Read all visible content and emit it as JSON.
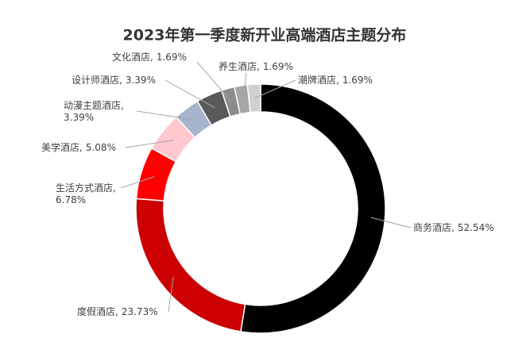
{
  "chart_data": {
    "type": "donut",
    "title": "2023年第一季度新开业高端酒店主题分布",
    "categories": [
      "商务酒店",
      "度假酒店",
      "生活方式酒店",
      "美学酒店",
      "动漫主题酒店",
      "设计师酒店",
      "文化酒店",
      "养生酒店",
      "潮牌酒店"
    ],
    "values": [
      52.54,
      23.73,
      6.78,
      5.08,
      3.39,
      3.39,
      1.69,
      1.69,
      1.69
    ],
    "value_labels": [
      "52.54%",
      "23.73%",
      "6.78%",
      "5.08%",
      "3.39%",
      "3.39%",
      "1.69%",
      "1.69%",
      "1.69%"
    ],
    "label_separator": ",",
    "colors": [
      "#000000",
      "#cc0000",
      "#ff0000",
      "#ffc7ce",
      "#a6b4cc",
      "#595959",
      "#8c8c8c",
      "#a6a6a6",
      "#d0d0d0"
    ]
  }
}
